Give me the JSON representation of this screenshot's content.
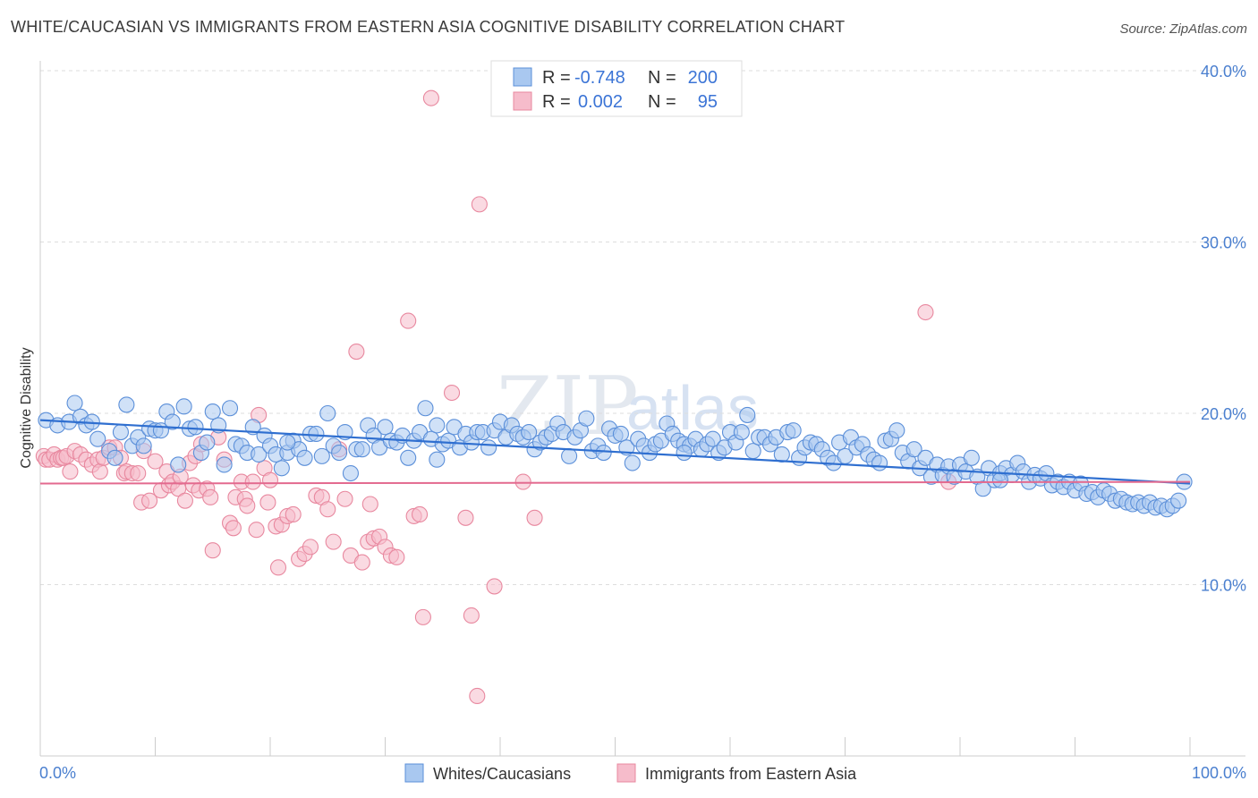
{
  "title": "WHITE/CAUCASIAN VS IMMIGRANTS FROM EASTERN ASIA COGNITIVE DISABILITY CORRELATION CHART",
  "source": "Source: ZipAtlas.com",
  "watermark": {
    "zip": "ZIP",
    "atlas": "atlas"
  },
  "legend": {
    "r_label": "R =",
    "n_label": "N =",
    "rows": [
      {
        "r": "-0.748",
        "n": "200"
      },
      {
        "r": "0.002",
        "n": "95"
      }
    ]
  },
  "bottom_legend": [
    "Whites/Caucasians",
    "Immigrants from Eastern Asia"
  ],
  "colors": {
    "blue_fill": "#a9c8f0",
    "blue_stroke": "#5b8fd9",
    "blue_line": "#2f6fd0",
    "pink_fill": "#f6bccb",
    "pink_stroke": "#e8889f",
    "pink_line": "#e36a8f",
    "tick_text": "#4a7fcf",
    "grid": "#dddddd"
  },
  "chart_data": {
    "type": "scatter",
    "title": "WHITE/CAUCASIAN VS IMMIGRANTS FROM EASTERN ASIA COGNITIVE DISABILITY CORRELATION CHART",
    "xlabel": "",
    "ylabel": "Cognitive Disability",
    "xlim": [
      0,
      100
    ],
    "ylim": [
      0,
      40
    ],
    "x_tick_labels": [
      "0.0%",
      "100.0%"
    ],
    "y_ticks": [
      10,
      20,
      30,
      40
    ],
    "y_tick_labels": [
      "10.0%",
      "20.0%",
      "30.0%",
      "40.0%"
    ],
    "grid": true,
    "legend_position": "top-center",
    "series": [
      {
        "name": "Whites/Caucasians",
        "r": -0.748,
        "n": 200,
        "trend": {
          "x": [
            0,
            100
          ],
          "y": [
            19.6,
            15.9
          ]
        },
        "points": [
          [
            0.5,
            19.6
          ],
          [
            1.5,
            19.3
          ],
          [
            2.5,
            19.5
          ],
          [
            3,
            20.6
          ],
          [
            3.5,
            19.8
          ],
          [
            4,
            19.3
          ],
          [
            4.5,
            19.5
          ],
          [
            5,
            18.5
          ],
          [
            6,
            17.8
          ],
          [
            6.5,
            17.4
          ],
          [
            7,
            18.9
          ],
          [
            7.5,
            20.5
          ],
          [
            8,
            18.1
          ],
          [
            8.5,
            18.6
          ],
          [
            9,
            18.1
          ],
          [
            9.5,
            19.1
          ],
          [
            10,
            19.0
          ],
          [
            10.5,
            19.0
          ],
          [
            11,
            20.1
          ],
          [
            11.5,
            19.5
          ],
          [
            12,
            17.0
          ],
          [
            12.5,
            20.4
          ],
          [
            13,
            19.1
          ],
          [
            13.5,
            19.2
          ],
          [
            14,
            17.7
          ],
          [
            14.5,
            18.3
          ],
          [
            15,
            20.1
          ],
          [
            15.5,
            19.3
          ],
          [
            16,
            17.0
          ],
          [
            16.5,
            20.3
          ],
          [
            17,
            18.2
          ],
          [
            17.5,
            18.1
          ],
          [
            18,
            17.7
          ],
          [
            18.5,
            19.2
          ],
          [
            19,
            17.6
          ],
          [
            19.5,
            18.7
          ],
          [
            20,
            18.1
          ],
          [
            20.5,
            17.6
          ],
          [
            21,
            16.8
          ],
          [
            21.5,
            17.7
          ],
          [
            22,
            18.4
          ],
          [
            22.5,
            17.9
          ],
          [
            23,
            17.4
          ],
          [
            23.5,
            18.8
          ],
          [
            24,
            18.8
          ],
          [
            24.5,
            17.5
          ],
          [
            25,
            20.0
          ],
          [
            25.5,
            18.1
          ],
          [
            26,
            17.7
          ],
          [
            26.5,
            18.9
          ],
          [
            27,
            16.5
          ],
          [
            27.5,
            17.9
          ],
          [
            28,
            17.9
          ],
          [
            28.5,
            19.3
          ],
          [
            29,
            18.7
          ],
          [
            29.5,
            18.0
          ],
          [
            30,
            19.2
          ],
          [
            30.5,
            18.4
          ],
          [
            31,
            18.3
          ],
          [
            31.5,
            18.7
          ],
          [
            32,
            17.4
          ],
          [
            32.5,
            18.4
          ],
          [
            33,
            18.9
          ],
          [
            33.5,
            20.3
          ],
          [
            34,
            18.5
          ],
          [
            34.5,
            19.3
          ],
          [
            35,
            18.2
          ],
          [
            35.5,
            18.4
          ],
          [
            36,
            19.2
          ],
          [
            36.5,
            18.0
          ],
          [
            37,
            18.8
          ],
          [
            37.5,
            18.3
          ],
          [
            38,
            18.9
          ],
          [
            38.5,
            18.9
          ],
          [
            39,
            18.0
          ],
          [
            39.5,
            19.0
          ],
          [
            40,
            19.5
          ],
          [
            40.5,
            18.6
          ],
          [
            41,
            19.3
          ],
          [
            41.5,
            18.8
          ],
          [
            42,
            18.6
          ],
          [
            42.5,
            18.9
          ],
          [
            43,
            17.9
          ],
          [
            43.5,
            18.3
          ],
          [
            44,
            18.6
          ],
          [
            44.5,
            18.8
          ],
          [
            45,
            19.4
          ],
          [
            45.5,
            18.9
          ],
          [
            46,
            17.5
          ],
          [
            46.5,
            18.6
          ],
          [
            47,
            19.0
          ],
          [
            47.5,
            19.7
          ],
          [
            48,
            17.8
          ],
          [
            48.5,
            18.1
          ],
          [
            49,
            17.7
          ],
          [
            49.5,
            19.1
          ],
          [
            50,
            18.7
          ],
          [
            50.5,
            18.8
          ],
          [
            51,
            18.0
          ],
          [
            51.5,
            17.1
          ],
          [
            52,
            18.5
          ],
          [
            52.5,
            18.1
          ],
          [
            53,
            17.7
          ],
          [
            53.5,
            18.2
          ],
          [
            54,
            18.4
          ],
          [
            54.5,
            19.4
          ],
          [
            55,
            18.8
          ],
          [
            55.5,
            18.4
          ],
          [
            56,
            18.2
          ],
          [
            56.5,
            18.1
          ],
          [
            57,
            18.5
          ],
          [
            57.5,
            17.9
          ],
          [
            58,
            18.2
          ],
          [
            58.5,
            18.5
          ],
          [
            59,
            17.7
          ],
          [
            59.5,
            18.0
          ],
          [
            60,
            18.9
          ],
          [
            60.5,
            18.3
          ],
          [
            61,
            18.9
          ],
          [
            61.5,
            19.9
          ],
          [
            62,
            17.8
          ],
          [
            62.5,
            18.6
          ],
          [
            63,
            18.6
          ],
          [
            63.5,
            18.2
          ],
          [
            64,
            18.6
          ],
          [
            64.5,
            17.6
          ],
          [
            65,
            18.9
          ],
          [
            65.5,
            19.0
          ],
          [
            66,
            17.4
          ],
          [
            66.5,
            18.0
          ],
          [
            67,
            18.3
          ],
          [
            67.5,
            18.2
          ],
          [
            68,
            17.9
          ],
          [
            68.5,
            17.4
          ],
          [
            69,
            17.1
          ],
          [
            69.5,
            18.3
          ],
          [
            70,
            17.5
          ],
          [
            70.5,
            18.6
          ],
          [
            71,
            18.0
          ],
          [
            71.5,
            18.2
          ],
          [
            72,
            17.6
          ],
          [
            72.5,
            17.3
          ],
          [
            73,
            17.1
          ],
          [
            73.5,
            18.4
          ],
          [
            74,
            18.5
          ],
          [
            74.5,
            19.0
          ],
          [
            75,
            17.7
          ],
          [
            75.5,
            17.2
          ],
          [
            76,
            17.9
          ],
          [
            76.5,
            16.8
          ],
          [
            77,
            17.4
          ],
          [
            77.5,
            16.3
          ],
          [
            78,
            17.0
          ],
          [
            78.5,
            16.4
          ],
          [
            79,
            16.9
          ],
          [
            79.5,
            16.3
          ],
          [
            80,
            17.0
          ],
          [
            80.5,
            16.6
          ],
          [
            81,
            17.4
          ],
          [
            81.5,
            16.3
          ],
          [
            82,
            15.6
          ],
          [
            82.5,
            16.8
          ],
          [
            83,
            16.1
          ],
          [
            83.5,
            16.5
          ],
          [
            84,
            16.8
          ],
          [
            84.5,
            16.4
          ],
          [
            85,
            17.1
          ],
          [
            85.5,
            16.6
          ],
          [
            86,
            16.0
          ],
          [
            86.5,
            16.4
          ],
          [
            87,
            16.2
          ],
          [
            87.5,
            16.5
          ],
          [
            88,
            15.8
          ],
          [
            88.5,
            16.0
          ],
          [
            89,
            15.7
          ],
          [
            89.5,
            16.0
          ],
          [
            90,
            15.5
          ],
          [
            90.5,
            15.9
          ],
          [
            91,
            15.3
          ],
          [
            91.5,
            15.4
          ],
          [
            92,
            15.1
          ],
          [
            92.5,
            15.5
          ],
          [
            93,
            15.3
          ],
          [
            93.5,
            14.9
          ],
          [
            94,
            15.0
          ],
          [
            94.5,
            14.8
          ],
          [
            95,
            14.7
          ],
          [
            95.5,
            14.8
          ],
          [
            96,
            14.6
          ],
          [
            96.5,
            14.8
          ],
          [
            97,
            14.5
          ],
          [
            97.5,
            14.6
          ],
          [
            98,
            14.4
          ],
          [
            98.5,
            14.6
          ],
          [
            99,
            14.9
          ],
          [
            99.5,
            16.0
          ],
          [
            21.5,
            18.3
          ],
          [
            34.5,
            17.3
          ],
          [
            56,
            17.7
          ],
          [
            83.5,
            16.1
          ]
        ]
      },
      {
        "name": "Immigrants from Eastern Asia",
        "r": 0.002,
        "n": 95,
        "trend": {
          "x": [
            0,
            100
          ],
          "y": [
            15.9,
            16.0
          ]
        },
        "points": [
          [
            0.3,
            17.5
          ],
          [
            0.5,
            17.3
          ],
          [
            0.8,
            17.3
          ],
          [
            1.2,
            17.6
          ],
          [
            1.5,
            17.3
          ],
          [
            1.8,
            17.4
          ],
          [
            2,
            17.4
          ],
          [
            2.3,
            17.5
          ],
          [
            2.6,
            16.6
          ],
          [
            3,
            17.8
          ],
          [
            3.5,
            17.6
          ],
          [
            4,
            17.3
          ],
          [
            4.5,
            17.0
          ],
          [
            5,
            17.3
          ],
          [
            5.2,
            16.6
          ],
          [
            5.5,
            17.4
          ],
          [
            6,
            18.0
          ],
          [
            6.5,
            18.0
          ],
          [
            7,
            17.4
          ],
          [
            7.3,
            16.5
          ],
          [
            7.5,
            16.6
          ],
          [
            8,
            16.5
          ],
          [
            8.5,
            16.5
          ],
          [
            8.8,
            14.8
          ],
          [
            9,
            17.8
          ],
          [
            9.5,
            14.9
          ],
          [
            10,
            17.2
          ],
          [
            10.5,
            15.5
          ],
          [
            11,
            16.6
          ],
          [
            11.2,
            15.8
          ],
          [
            11.5,
            16.0
          ],
          [
            12,
            15.6
          ],
          [
            12.2,
            16.3
          ],
          [
            12.6,
            14.9
          ],
          [
            13,
            17.1
          ],
          [
            13.3,
            15.8
          ],
          [
            13.5,
            17.5
          ],
          [
            13.8,
            15.5
          ],
          [
            14,
            18.2
          ],
          [
            14.5,
            15.6
          ],
          [
            14.8,
            15.1
          ],
          [
            15,
            12.0
          ],
          [
            15.5,
            18.6
          ],
          [
            16,
            17.3
          ],
          [
            16.5,
            13.6
          ],
          [
            16.8,
            13.3
          ],
          [
            17,
            15.1
          ],
          [
            17.5,
            16.0
          ],
          [
            17.8,
            15.0
          ],
          [
            18,
            14.6
          ],
          [
            18.5,
            16.0
          ],
          [
            18.8,
            13.2
          ],
          [
            19,
            19.9
          ],
          [
            19.5,
            16.8
          ],
          [
            19.8,
            14.8
          ],
          [
            20,
            16.1
          ],
          [
            20.5,
            13.4
          ],
          [
            20.7,
            11.0
          ],
          [
            21,
            13.5
          ],
          [
            21.5,
            14.0
          ],
          [
            22,
            14.1
          ],
          [
            22.5,
            11.5
          ],
          [
            23,
            11.8
          ],
          [
            23.5,
            12.2
          ],
          [
            24,
            15.2
          ],
          [
            24.5,
            15.1
          ],
          [
            25,
            14.4
          ],
          [
            25.5,
            12.5
          ],
          [
            26,
            17.9
          ],
          [
            26.5,
            15.0
          ],
          [
            27,
            11.7
          ],
          [
            27.5,
            23.6
          ],
          [
            28,
            11.3
          ],
          [
            28.5,
            12.5
          ],
          [
            28.7,
            14.7
          ],
          [
            29,
            12.7
          ],
          [
            29.5,
            12.8
          ],
          [
            30,
            12.2
          ],
          [
            30.5,
            11.7
          ],
          [
            31,
            11.6
          ],
          [
            32,
            25.4
          ],
          [
            32.5,
            14.0
          ],
          [
            33,
            14.1
          ],
          [
            33.3,
            8.1
          ],
          [
            34,
            38.4
          ],
          [
            35.8,
            21.2
          ],
          [
            37,
            13.9
          ],
          [
            37.5,
            8.2
          ],
          [
            38.2,
            32.2
          ],
          [
            38,
            3.5
          ],
          [
            39.5,
            9.9
          ],
          [
            42,
            16.0
          ],
          [
            43,
            13.9
          ],
          [
            77,
            25.9
          ],
          [
            79,
            16.0
          ]
        ]
      }
    ]
  }
}
